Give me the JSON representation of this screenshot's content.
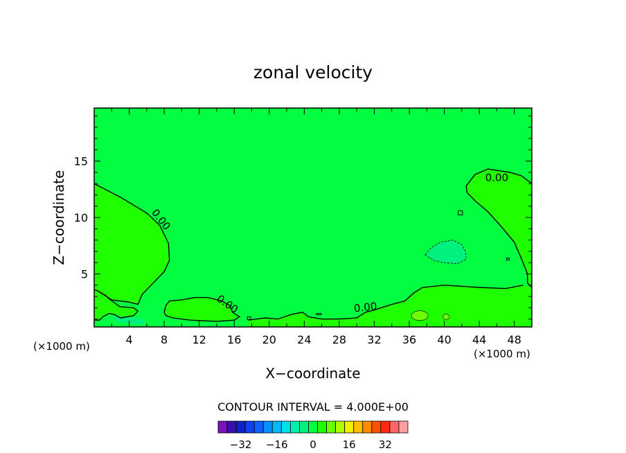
{
  "chart_data": {
    "type": "heatmap",
    "title": "zonal velocity",
    "xlabel": "X−coordinate",
    "ylabel": "Z−coordinate",
    "x_unit_left": "(×1000 m)",
    "x_unit_right": "(×1000 m)",
    "xlim": [
      0,
      50
    ],
    "ylim": [
      0.3,
      19.7
    ],
    "xticks": [
      4,
      8,
      12,
      16,
      20,
      24,
      28,
      32,
      36,
      40,
      44,
      48
    ],
    "yticks": [
      5,
      10,
      15
    ],
    "contour_interval_label": "CONTOUR INTERVAL = 4.000E+00",
    "contour_labels": [
      {
        "text": "0.00",
        "x": 7.6,
        "z": 9.8,
        "angle": 52
      },
      {
        "text": "0.00",
        "x": 15.2,
        "z": 2.3,
        "angle": 35
      },
      {
        "text": "0.00",
        "x": 31.0,
        "z": 2.0,
        "angle": -6
      },
      {
        "text": "0.00",
        "x": 46.0,
        "z": 13.5,
        "angle": 0
      }
    ],
    "colorbar": {
      "ticks": [
        -32,
        -16,
        0,
        16,
        32
      ],
      "levels": [
        -38,
        -34,
        -30,
        -26,
        -22,
        -18,
        -14,
        -10,
        -6,
        -2,
        2,
        6,
        10,
        14,
        18,
        22,
        26,
        30,
        34,
        38
      ],
      "colors": [
        "#7a14b8",
        "#3a0fb0",
        "#1020c8",
        "#1040e8",
        "#1060ff",
        "#0a90ff",
        "#00b8ff",
        "#00e0e8",
        "#00f0b0",
        "#00f080",
        "#00ff40",
        "#20ff00",
        "#70ff00",
        "#b0ff00",
        "#f0f000",
        "#ffc000",
        "#ff8c00",
        "#ff5000",
        "#ff2a10",
        "#ff6666",
        "#ffa0a0"
      ]
    },
    "fill_colors": {
      "background": "#00ff40",
      "positive": "#20ff00",
      "negative": "#00f080"
    },
    "regions": {
      "left_positive": [
        [
          0,
          13
        ],
        [
          3,
          11.8
        ],
        [
          6,
          10.4
        ],
        [
          7.5,
          9.3
        ],
        [
          8.5,
          7.7
        ],
        [
          8.6,
          6.2
        ],
        [
          8,
          5.2
        ],
        [
          6.5,
          4
        ],
        [
          5.5,
          3.2
        ],
        [
          5,
          2.3
        ],
        [
          4,
          2.5
        ],
        [
          2,
          2.7
        ],
        [
          1.2,
          3.1
        ],
        [
          0.4,
          3.5
        ],
        [
          0,
          3.6
        ]
      ],
      "left_strip": [
        [
          0,
          3.6
        ],
        [
          0.6,
          3.4
        ],
        [
          1.3,
          3.1
        ],
        [
          1.7,
          2.8
        ],
        [
          2.4,
          2.4
        ],
        [
          2.9,
          2.1
        ],
        [
          4.5,
          2.0
        ],
        [
          5,
          1.7
        ],
        [
          4.5,
          1.3
        ],
        [
          3,
          1.1
        ],
        [
          2.3,
          1.4
        ],
        [
          1.7,
          1.5
        ],
        [
          1.0,
          1.2
        ],
        [
          0.6,
          0.9
        ],
        [
          0,
          0.9
        ]
      ],
      "left_strip2": [
        [
          2.2,
          1.3
        ],
        [
          3.5,
          1.2
        ],
        [
          5.5,
          1.0
        ],
        [
          5.8,
          0.6
        ],
        [
          4.5,
          0.5
        ],
        [
          3,
          0.7
        ],
        [
          2.2,
          0.9
        ]
      ],
      "mid_positive": [
        [
          8,
          1.6
        ],
        [
          8.2,
          2.2
        ],
        [
          8.6,
          2.6
        ],
        [
          10,
          2.7
        ],
        [
          11.5,
          2.9
        ],
        [
          13,
          2.9
        ],
        [
          14.6,
          2.6
        ],
        [
          15.5,
          2.2
        ],
        [
          15.8,
          1.6
        ],
        [
          16.6,
          1.2
        ],
        [
          16,
          0.9
        ],
        [
          14,
          0.8
        ],
        [
          11,
          0.9
        ],
        [
          9,
          1.1
        ],
        [
          8.2,
          1.3
        ]
      ],
      "bottom_positive": [
        [
          17.6,
          0.9
        ],
        [
          19.5,
          1.1
        ],
        [
          21,
          1.0
        ],
        [
          22.5,
          1.4
        ],
        [
          23.8,
          1.6
        ],
        [
          24.5,
          1.2
        ],
        [
          26,
          1.0
        ],
        [
          28,
          1.0
        ],
        [
          30,
          1.1
        ],
        [
          31,
          1.6
        ],
        [
          32,
          1.8
        ],
        [
          34,
          2.3
        ],
        [
          35.5,
          2.6
        ],
        [
          36.5,
          3.3
        ],
        [
          37.5,
          3.8
        ],
        [
          40,
          4.0
        ],
        [
          44,
          3.8
        ],
        [
          47,
          3.7
        ],
        [
          49,
          4.0
        ],
        [
          50,
          3.8
        ],
        [
          50,
          0.3
        ],
        [
          17.6,
          0.3
        ]
      ],
      "right_positive": [
        [
          50,
          13.0
        ],
        [
          48.8,
          13.7
        ],
        [
          47.5,
          14.0
        ],
        [
          45,
          14.3
        ],
        [
          43.5,
          13.8
        ],
        [
          42.5,
          12.8
        ],
        [
          42.6,
          12.2
        ],
        [
          43.5,
          11.5
        ],
        [
          45,
          10.5
        ],
        [
          46.5,
          9.2
        ],
        [
          48,
          7.8
        ],
        [
          49,
          6.0
        ],
        [
          49.5,
          5.0
        ],
        [
          49.5,
          4.2
        ],
        [
          50,
          3.8
        ]
      ],
      "negative_blob": [
        [
          37.8,
          6.7
        ],
        [
          38.5,
          7.3
        ],
        [
          39.5,
          7.8
        ],
        [
          41,
          8.0
        ],
        [
          42,
          7.6
        ],
        [
          42.4,
          7.0
        ],
        [
          42.5,
          6.3
        ],
        [
          41.5,
          5.9
        ],
        [
          40,
          6.0
        ],
        [
          38.8,
          6.2
        ]
      ]
    }
  }
}
